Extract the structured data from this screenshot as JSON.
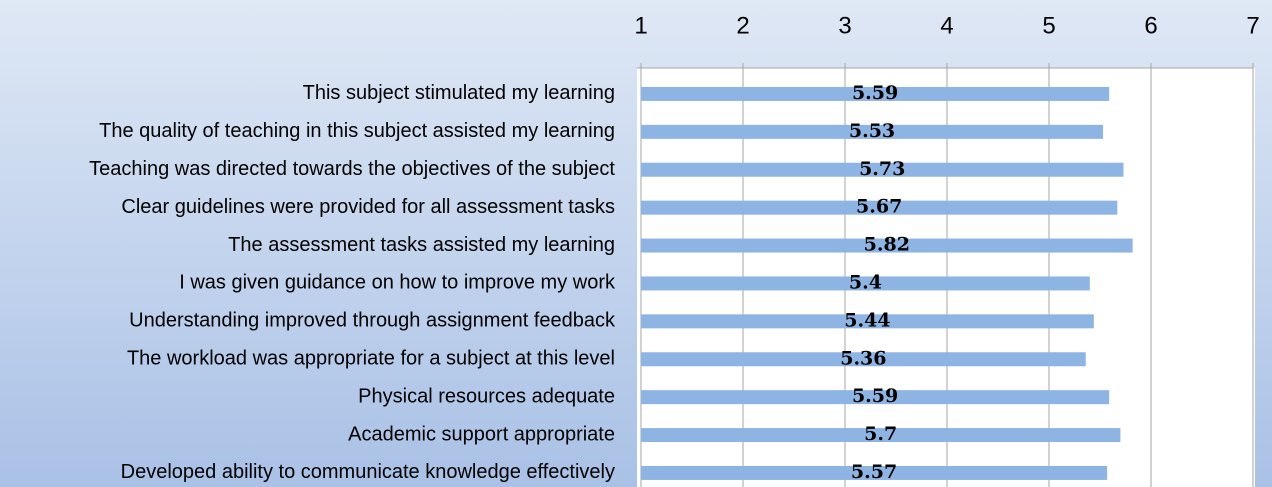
{
  "chart_data": {
    "type": "bar",
    "orientation": "horizontal",
    "categories": [
      "This subject stimulated my learning",
      "The quality of teaching in this subject assisted my learning",
      "Teaching was directed towards the objectives of the subject",
      "Clear guidelines were provided for all assessment tasks",
      "The assessment tasks assisted my learning",
      "I was given guidance on how to improve my work",
      "Understanding improved through assignment feedback",
      "The workload was appropriate for a subject at this level",
      "Physical resources adequate",
      "Academic support appropriate",
      "Developed ability to communicate knowledge effectively"
    ],
    "values": [
      5.59,
      5.53,
      5.73,
      5.67,
      5.82,
      5.4,
      5.44,
      5.36,
      5.59,
      5.7,
      5.57
    ],
    "color": "#8eb4e3",
    "xlim": [
      1,
      7
    ],
    "xticks": [
      1,
      2,
      3,
      4,
      5,
      6,
      7
    ],
    "grid": true
  }
}
